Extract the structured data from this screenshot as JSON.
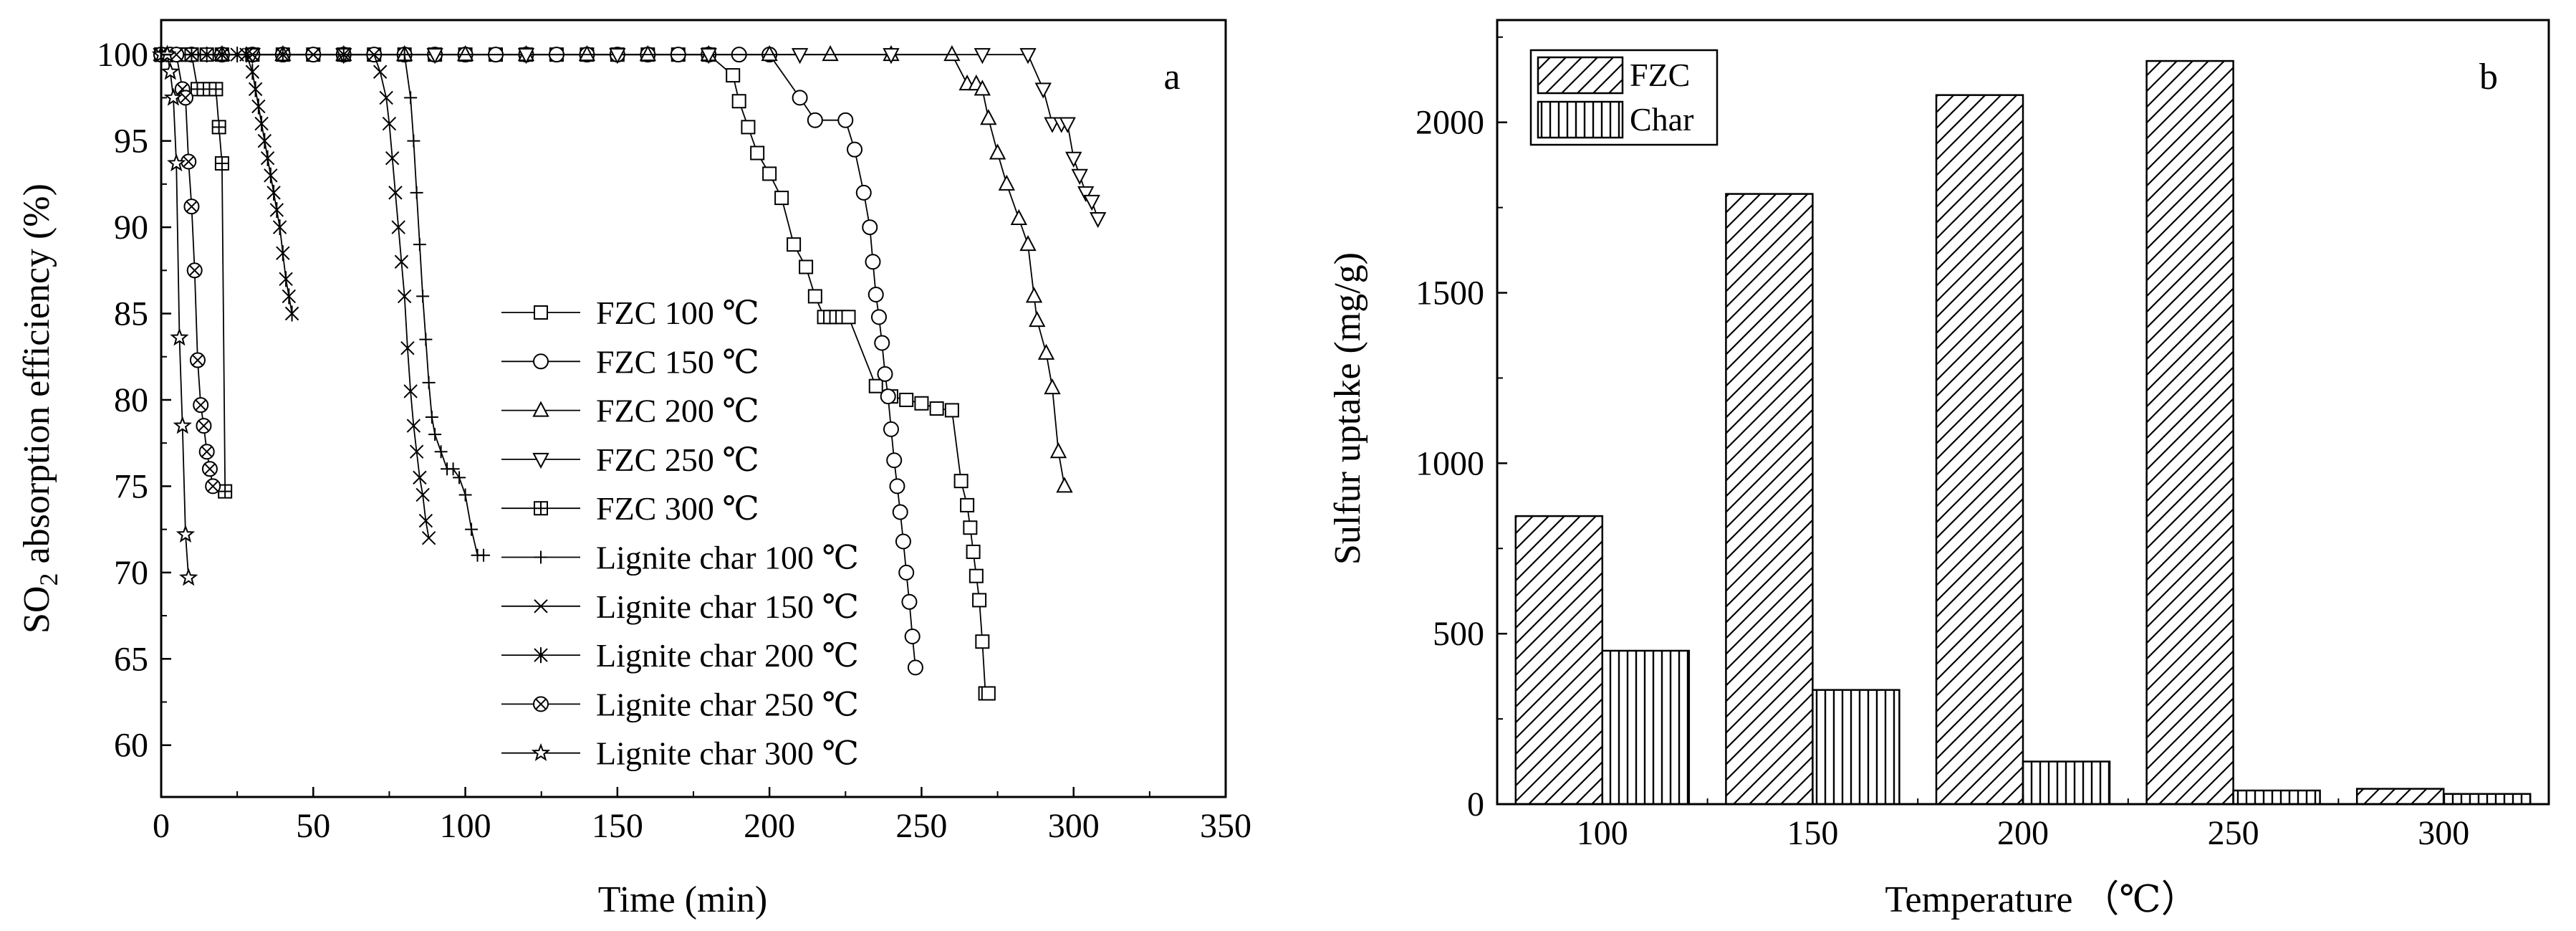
{
  "chart_data": [
    {
      "panel_label": "a",
      "type": "line",
      "xlabel": "Time (min)",
      "ylabel_main": "SO",
      "ylabel_sub": "2",
      "ylabel_rest": " absorption efficiency (%)",
      "xlim": [
        0,
        350
      ],
      "ylim": [
        57,
        102
      ],
      "xticks": [
        0,
        50,
        100,
        150,
        200,
        250,
        300,
        350
      ],
      "yticks": [
        60,
        65,
        70,
        75,
        80,
        85,
        90,
        95,
        100
      ],
      "grid": false,
      "legend_position": "center",
      "series": [
        {
          "name": "FZC 100 ℃",
          "marker": "square",
          "x": [
            0,
            5,
            10,
            15,
            20,
            30,
            40,
            50,
            60,
            70,
            80,
            90,
            100,
            110,
            120,
            130,
            140,
            150,
            160,
            170,
            180,
            188,
            190,
            193,
            196,
            200,
            204,
            208,
            212,
            215,
            218,
            220,
            222,
            224,
            226,
            235,
            240,
            245,
            250,
            255,
            260,
            263,
            265,
            266,
            267,
            268,
            269,
            270,
            271,
            272
          ],
          "y": [
            100,
            100,
            100,
            100,
            100,
            100,
            100,
            100,
            100,
            100,
            100,
            100,
            100,
            100,
            100,
            100,
            100,
            100,
            100,
            100,
            100,
            98.8,
            97.3,
            95.8,
            94.3,
            93.1,
            91.7,
            89.0,
            87.7,
            86.0,
            84.8,
            84.8,
            84.8,
            84.8,
            84.8,
            80.8,
            80.2,
            80.0,
            79.8,
            79.5,
            79.4,
            75.3,
            73.9,
            72.6,
            71.2,
            69.8,
            68.4,
            66.0,
            63.0,
            63.0
          ]
        },
        {
          "name": "FZC 150 ℃",
          "marker": "circle",
          "x": [
            0,
            10,
            20,
            30,
            40,
            50,
            60,
            70,
            80,
            90,
            100,
            110,
            120,
            130,
            140,
            150,
            160,
            170,
            180,
            190,
            200,
            210,
            215,
            225,
            228,
            231,
            233,
            234,
            235,
            236,
            237,
            238,
            239,
            240,
            241,
            242,
            243,
            244,
            245,
            246,
            247,
            248
          ],
          "y": [
            100,
            100,
            100,
            100,
            100,
            100,
            100,
            100,
            100,
            100,
            100,
            100,
            100,
            100,
            100,
            100,
            100,
            100,
            100,
            100,
            100,
            97.5,
            96.2,
            96.2,
            94.5,
            92.0,
            90.0,
            88.0,
            86.1,
            84.8,
            83.3,
            81.5,
            80.2,
            78.3,
            76.5,
            75.0,
            73.5,
            71.8,
            70.0,
            68.3,
            66.3,
            64.5
          ]
        },
        {
          "name": "FZC 200 ℃",
          "marker": "triangle-up",
          "x": [
            0,
            20,
            40,
            60,
            80,
            100,
            120,
            140,
            160,
            180,
            200,
            220,
            240,
            260,
            265,
            268,
            270,
            272,
            275,
            278,
            282,
            285,
            287,
            288,
            291,
            293,
            295,
            297
          ],
          "y": [
            100,
            100,
            100,
            100,
            100,
            100,
            100,
            100,
            100,
            100,
            100,
            100,
            100,
            100,
            98.3,
            98.3,
            98.0,
            96.3,
            94.3,
            92.5,
            90.5,
            89.0,
            86.0,
            84.6,
            82.7,
            80.7,
            77.0,
            75.0
          ]
        },
        {
          "name": "FZC 250 ℃",
          "marker": "triangle-down",
          "x": [
            0,
            30,
            60,
            90,
            120,
            150,
            180,
            210,
            240,
            270,
            285,
            290,
            293,
            296,
            298,
            300,
            302,
            304,
            306,
            308
          ],
          "y": [
            100,
            100,
            100,
            100,
            100,
            100,
            100,
            100,
            100,
            100,
            100,
            98.0,
            96.0,
            96.0,
            96.0,
            94.0,
            93.0,
            92.0,
            91.5,
            90.5
          ]
        },
        {
          "name": "FZC 300 ℃",
          "marker": "square-plus",
          "x": [
            0,
            2,
            4,
            6,
            8,
            10,
            12,
            14,
            16,
            18,
            19,
            20,
            21
          ],
          "y": [
            100,
            100,
            100,
            100,
            100,
            100,
            98.0,
            98.0,
            98.0,
            98.0,
            95.8,
            93.7,
            74.7
          ]
        },
        {
          "name": "Lignite char 100 ℃",
          "marker": "plus",
          "x": [
            0,
            20,
            40,
            60,
            80,
            82,
            83,
            84,
            85,
            86,
            87,
            88,
            89,
            90,
            92,
            94,
            96,
            98,
            100,
            102,
            104,
            106
          ],
          "y": [
            100,
            100,
            100,
            100,
            100,
            97.5,
            95.0,
            92.0,
            89.0,
            86.0,
            83.5,
            81.0,
            79.0,
            78.0,
            77.0,
            76.0,
            76.0,
            75.5,
            74.5,
            72.5,
            71.0,
            71.0
          ]
        },
        {
          "name": "Lignite char 150 ℃",
          "marker": "cross",
          "x": [
            0,
            10,
            20,
            30,
            40,
            50,
            60,
            70,
            72,
            74,
            75,
            76,
            77,
            78,
            79,
            80,
            81,
            82,
            83,
            84,
            85,
            86,
            87,
            88
          ],
          "y": [
            100,
            100,
            100,
            100,
            100,
            100,
            100,
            100,
            99.0,
            97.5,
            96.0,
            94.0,
            92.0,
            90.0,
            88.0,
            86.0,
            83.0,
            80.5,
            78.5,
            77.0,
            75.5,
            74.5,
            73.0,
            72.0
          ]
        },
        {
          "name": "Lignite char 200 ℃",
          "marker": "asterisk",
          "x": [
            0,
            5,
            10,
            15,
            20,
            25,
            28,
            30,
            31,
            32,
            33,
            34,
            35,
            36,
            37,
            38,
            39,
            40,
            41,
            42,
            43
          ],
          "y": [
            100,
            100,
            100,
            100,
            100,
            100,
            100,
            99.0,
            98.0,
            97.0,
            96.0,
            95.0,
            94.0,
            93.0,
            92.0,
            91.0,
            90.0,
            88.5,
            87.0,
            86.0,
            85.0
          ]
        },
        {
          "name": "Lignite char 250 ℃",
          "marker": "circle-cross",
          "x": [
            0,
            3,
            5,
            7,
            8,
            9,
            10,
            11,
            12,
            13,
            14,
            15,
            16,
            17
          ],
          "y": [
            100,
            100,
            100,
            98.0,
            97.5,
            93.8,
            91.2,
            87.5,
            82.3,
            79.7,
            78.5,
            77.0,
            76.0,
            75.0
          ]
        },
        {
          "name": "Lignite char 300 ℃",
          "marker": "star",
          "x": [
            0,
            2,
            3,
            4,
            5,
            6,
            7,
            8,
            9
          ],
          "y": [
            100,
            100,
            99.0,
            97.5,
            93.7,
            83.6,
            78.5,
            72.2,
            69.7
          ]
        }
      ]
    },
    {
      "panel_label": "b",
      "type": "bar",
      "xlabel": "Temperature （℃）",
      "ylabel": "Sulfur uptake (mg/g)",
      "categories": [
        "100",
        "150",
        "200",
        "250",
        "300"
      ],
      "ylim": [
        0,
        2300
      ],
      "yticks": [
        0,
        500,
        1000,
        1500,
        2000
      ],
      "grid": false,
      "legend_position": "top-left",
      "series": [
        {
          "name": "FZC",
          "pattern": "diagonal-hatch",
          "values": [
            845,
            1790,
            2080,
            2180,
            45
          ]
        },
        {
          "name": "Char",
          "pattern": "vertical-hatch",
          "values": [
            450,
            335,
            125,
            40,
            30
          ]
        }
      ]
    }
  ]
}
